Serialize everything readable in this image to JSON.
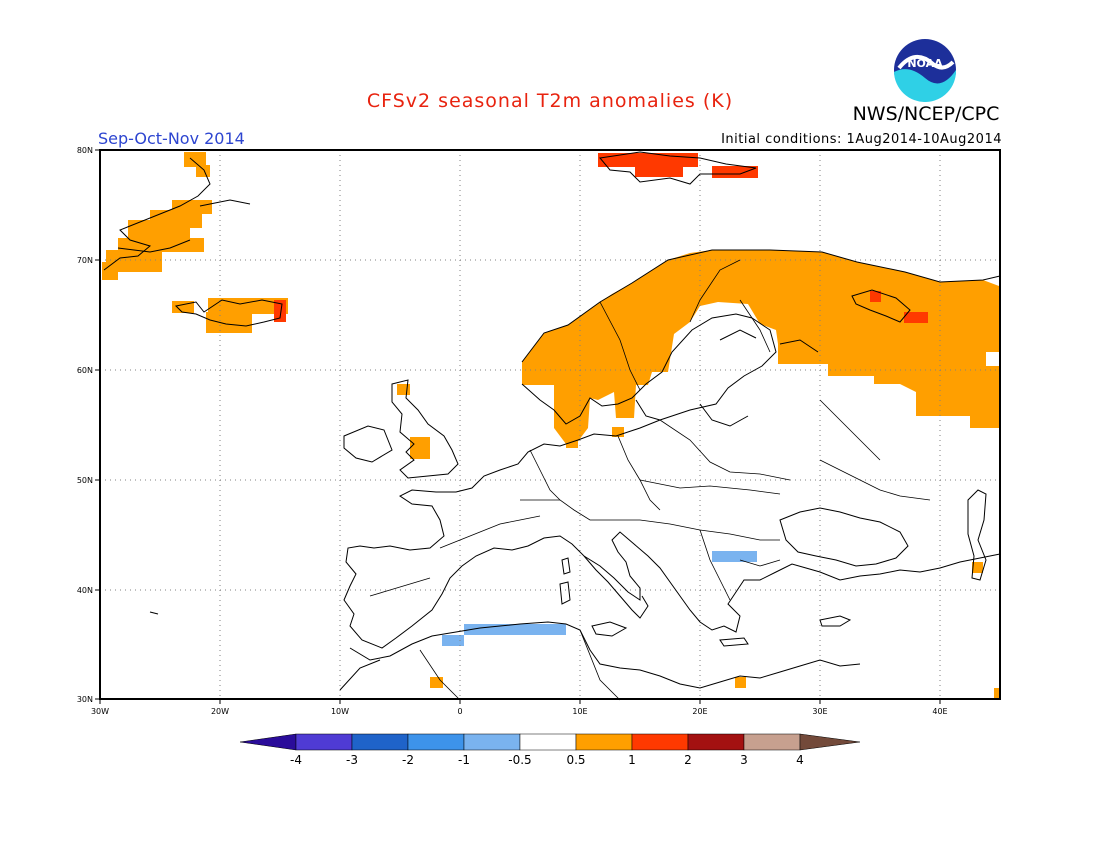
{
  "header": {
    "title": "CFSv2 seasonal T2m anomalies (K)",
    "agency": "NWS/NCEP/CPC",
    "season": "Sep-Oct-Nov 2014",
    "initial_conditions": "Initial conditions: 1Aug2014-10Aug2014",
    "logo_text": "NOAA"
  },
  "map": {
    "projection": "lon-lat",
    "lon_range": [
      -30,
      45
    ],
    "lat_range": [
      30,
      80
    ],
    "lon_ticks": [
      "30W",
      "20W",
      "10W",
      "0",
      "10E",
      "20E",
      "30E",
      "40E"
    ],
    "lat_ticks": [
      "80N",
      "70N",
      "60N",
      "50N",
      "40N",
      "30N"
    ],
    "gridlines": true,
    "colors": {
      "land_line": "#000000",
      "grid": "#808080"
    }
  },
  "colorbar": {
    "labels": [
      "-4",
      "-3",
      "-2",
      "-1",
      "-0.5",
      "0.5",
      "1",
      "2",
      "3",
      "4"
    ],
    "colors": [
      "#2a0c9a",
      "#4f3bd4",
      "#1f63c9",
      "#3d93ea",
      "#7ab3ef",
      "#ffffff",
      "#ff9f00",
      "#ff3900",
      "#a31111",
      "#c7a08f",
      "#734a3a"
    ]
  },
  "anomaly_regions": [
    {
      "name": "greenland-coast-warm-a",
      "category": "0.5 to 1",
      "color": "#ff9f00"
    },
    {
      "name": "iceland-warm",
      "category": "0.5 to 1",
      "color": "#ff9f00"
    },
    {
      "name": "iceland-east-hot",
      "category": "1 to 2",
      "color": "#ff3900"
    },
    {
      "name": "svalbard-hot",
      "category": "1 to 2",
      "color": "#ff3900"
    },
    {
      "name": "scandinavia-russia-warm",
      "category": "0.5 to 1",
      "color": "#ff9f00"
    },
    {
      "name": "kola-hot",
      "category": "1 to 2",
      "color": "#ff3900"
    },
    {
      "name": "algeria-coast-cool",
      "category": "-1 to -0.5",
      "color": "#7ab3ef"
    },
    {
      "name": "balkans-cool",
      "category": "-1 to -0.5",
      "color": "#7ab3ef"
    },
    {
      "name": "scattered-warm-cells",
      "category": "0.5 to 1",
      "color": "#ff9f00"
    }
  ]
}
